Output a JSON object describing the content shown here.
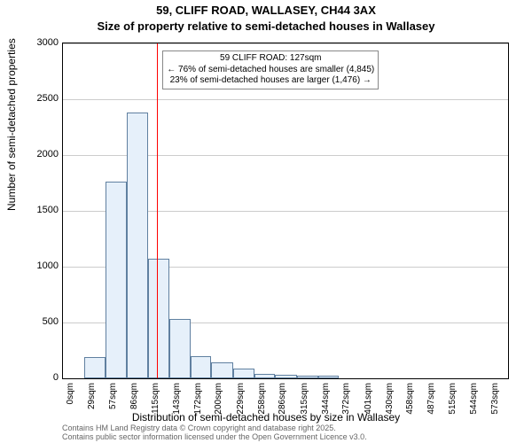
{
  "title_line1": "59, CLIFF ROAD, WALLASEY, CH44 3AX",
  "title_line2": "Size of property relative to semi-detached houses in Wallasey",
  "yaxis_label": "Number of semi-detached properties",
  "xaxis_label": "Distribution of semi-detached houses by size in Wallasey",
  "attribution_line1": "Contains HM Land Registry data © Crown copyright and database right 2025.",
  "attribution_line2": "Contains public sector information licensed under the Open Government Licence v3.0.",
  "chart": {
    "type": "histogram",
    "background_color": "#ffffff",
    "grid_color": "#cccccc",
    "axis_color": "#000000",
    "bar_fill": "#e6f0fa",
    "bar_stroke": "#6080a0",
    "reference_line_color": "#ff0000",
    "reference_line_x": 127,
    "ylim": [
      0,
      3000
    ],
    "ytick_step": 500,
    "xlim": [
      0,
      600
    ],
    "xtick_labels": [
      "0sqm",
      "29sqm",
      "57sqm",
      "86sqm",
      "115sqm",
      "143sqm",
      "172sqm",
      "200sqm",
      "229sqm",
      "258sqm",
      "286sqm",
      "315sqm",
      "344sqm",
      "372sqm",
      "401sqm",
      "430sqm",
      "458sqm",
      "487sqm",
      "515sqm",
      "544sqm",
      "573sqm"
    ],
    "xtick_values": [
      0,
      29,
      57,
      86,
      115,
      143,
      172,
      200,
      229,
      258,
      286,
      315,
      344,
      372,
      401,
      430,
      458,
      487,
      515,
      544,
      573
    ],
    "bars": [
      {
        "x0": 29,
        "x1": 57,
        "y": 190
      },
      {
        "x0": 57,
        "x1": 86,
        "y": 1760
      },
      {
        "x0": 86,
        "x1": 115,
        "y": 2380
      },
      {
        "x0": 115,
        "x1": 143,
        "y": 1070
      },
      {
        "x0": 143,
        "x1": 172,
        "y": 530
      },
      {
        "x0": 172,
        "x1": 200,
        "y": 200
      },
      {
        "x0": 200,
        "x1": 229,
        "y": 140
      },
      {
        "x0": 229,
        "x1": 258,
        "y": 90
      },
      {
        "x0": 258,
        "x1": 286,
        "y": 40
      },
      {
        "x0": 286,
        "x1": 315,
        "y": 30
      },
      {
        "x0": 315,
        "x1": 344,
        "y": 20
      },
      {
        "x0": 344,
        "x1": 372,
        "y": 25
      }
    ],
    "title_fontsize": 13,
    "label_fontsize": 12,
    "tick_fontsize": 11,
    "xtick_fontsize": 10,
    "annotation_fontsize": 10
  },
  "annotation": {
    "line1": "59 CLIFF ROAD: 127sqm",
    "line2": "← 76% of semi-detached houses are smaller (4,845)",
    "line3": "23% of semi-detached houses are larger (1,476) →"
  }
}
